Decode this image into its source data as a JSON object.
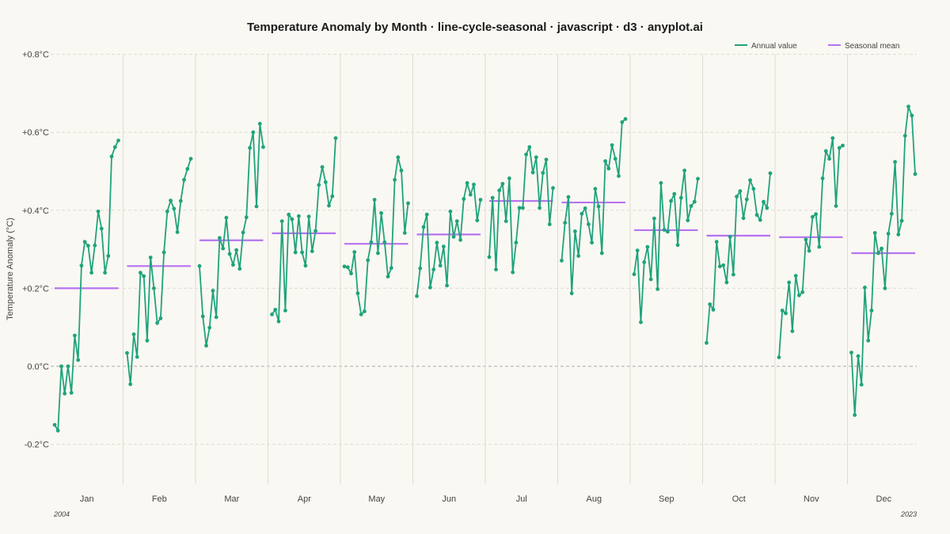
{
  "chart_data": {
    "type": "line",
    "title": "Temperature Anomaly by Month · line-cycle-seasonal · javascript · d3 · anyplot.ai",
    "ylabel": "Temperature Anomaly (°C)",
    "ylim": [
      -0.3,
      0.8
    ],
    "yticks": [
      -0.2,
      0.0,
      0.2,
      0.4,
      0.6,
      0.8
    ],
    "ytick_labels": [
      "-0.2°C",
      "0.0°C",
      "+0.2°C",
      "+0.4°C",
      "+0.6°C",
      "+0.8°C"
    ],
    "grid": true,
    "legend_position": "top-right",
    "legend": [
      "Annual value",
      "Seasonal mean"
    ],
    "year_start_label": "2004",
    "year_end_label": "2023",
    "colors": {
      "annual": "#1FA37B",
      "mean": "#B673F2",
      "grid": "#DDDBD3",
      "zero": "#AAAAAA"
    },
    "months": [
      {
        "label": "Jan",
        "mean": 0.2,
        "values": [
          -0.15,
          -0.165,
          0.0,
          -0.07,
          0.0,
          -0.068,
          0.079,
          0.016,
          0.258,
          0.319,
          0.309,
          0.24,
          0.31,
          0.397,
          0.353,
          0.24,
          0.283,
          0.538,
          0.562,
          0.579
        ]
      },
      {
        "label": "Feb",
        "mean": 0.257,
        "values": [
          0.034,
          -0.046,
          0.082,
          0.024,
          0.24,
          0.231,
          0.066,
          0.279,
          0.2,
          0.111,
          0.123,
          0.292,
          0.397,
          0.425,
          0.404,
          0.344,
          0.424,
          0.478,
          0.506,
          0.532
        ]
      },
      {
        "label": "Mar",
        "mean": 0.323,
        "values": [
          0.257,
          0.128,
          0.053,
          0.099,
          0.194,
          0.126,
          0.329,
          0.302,
          0.381,
          0.288,
          0.26,
          0.298,
          0.25,
          0.343,
          0.382,
          0.56,
          0.6,
          0.41,
          0.622,
          0.562
        ]
      },
      {
        "label": "Apr",
        "mean": 0.341,
        "values": [
          0.133,
          0.145,
          0.115,
          0.372,
          0.143,
          0.389,
          0.377,
          0.292,
          0.385,
          0.292,
          0.258,
          0.384,
          0.295,
          0.347,
          0.465,
          0.511,
          0.472,
          0.412,
          0.436,
          0.585
        ]
      },
      {
        "label": "May",
        "mean": 0.314,
        "values": [
          0.256,
          0.254,
          0.238,
          0.293,
          0.187,
          0.133,
          0.141,
          0.272,
          0.318,
          0.427,
          0.29,
          0.393,
          0.318,
          0.23,
          0.252,
          0.478,
          0.536,
          0.502,
          0.342,
          0.418
        ]
      },
      {
        "label": "Jun",
        "mean": 0.338,
        "values": [
          0.18,
          0.251,
          0.357,
          0.389,
          0.202,
          0.248,
          0.317,
          0.258,
          0.307,
          0.207,
          0.397,
          0.332,
          0.372,
          0.324,
          0.429,
          0.47,
          0.44,
          0.466,
          0.374,
          0.427
        ]
      },
      {
        "label": "Jul",
        "mean": 0.424,
        "values": [
          0.28,
          0.432,
          0.248,
          0.451,
          0.468,
          0.372,
          0.482,
          0.241,
          0.317,
          0.406,
          0.406,
          0.543,
          0.562,
          0.497,
          0.536,
          0.406,
          0.496,
          0.53,
          0.364,
          0.457
        ]
      },
      {
        "label": "Aug",
        "mean": 0.42,
        "values": [
          0.271,
          0.368,
          0.434,
          0.187,
          0.346,
          0.283,
          0.391,
          0.405,
          0.364,
          0.317,
          0.455,
          0.41,
          0.29,
          0.526,
          0.507,
          0.567,
          0.532,
          0.488,
          0.626,
          0.634
        ]
      },
      {
        "label": "Sep",
        "mean": 0.349,
        "values": [
          0.236,
          0.297,
          0.113,
          0.267,
          0.306,
          0.223,
          0.379,
          0.198,
          0.47,
          0.35,
          0.345,
          0.424,
          0.442,
          0.311,
          0.432,
          0.502,
          0.374,
          0.411,
          0.422,
          0.481
        ]
      },
      {
        "label": "Oct",
        "mean": 0.335,
        "values": [
          0.06,
          0.159,
          0.145,
          0.319,
          0.256,
          0.259,
          0.215,
          0.332,
          0.235,
          0.435,
          0.449,
          0.38,
          0.428,
          0.477,
          0.455,
          0.388,
          0.375,
          0.422,
          0.406,
          0.495
        ]
      },
      {
        "label": "Nov",
        "mean": 0.331,
        "values": [
          0.023,
          0.143,
          0.136,
          0.215,
          0.09,
          0.232,
          0.182,
          0.19,
          0.325,
          0.296,
          0.383,
          0.39,
          0.306,
          0.482,
          0.552,
          0.532,
          0.585,
          0.411,
          0.56,
          0.566
        ]
      },
      {
        "label": "Dec",
        "mean": 0.29,
        "values": [
          0.035,
          -0.125,
          0.026,
          -0.047,
          0.202,
          0.066,
          0.143,
          0.342,
          0.29,
          0.302,
          0.2,
          0.34,
          0.391,
          0.524,
          0.338,
          0.373,
          0.591,
          0.666,
          0.643,
          0.493
        ]
      }
    ]
  }
}
